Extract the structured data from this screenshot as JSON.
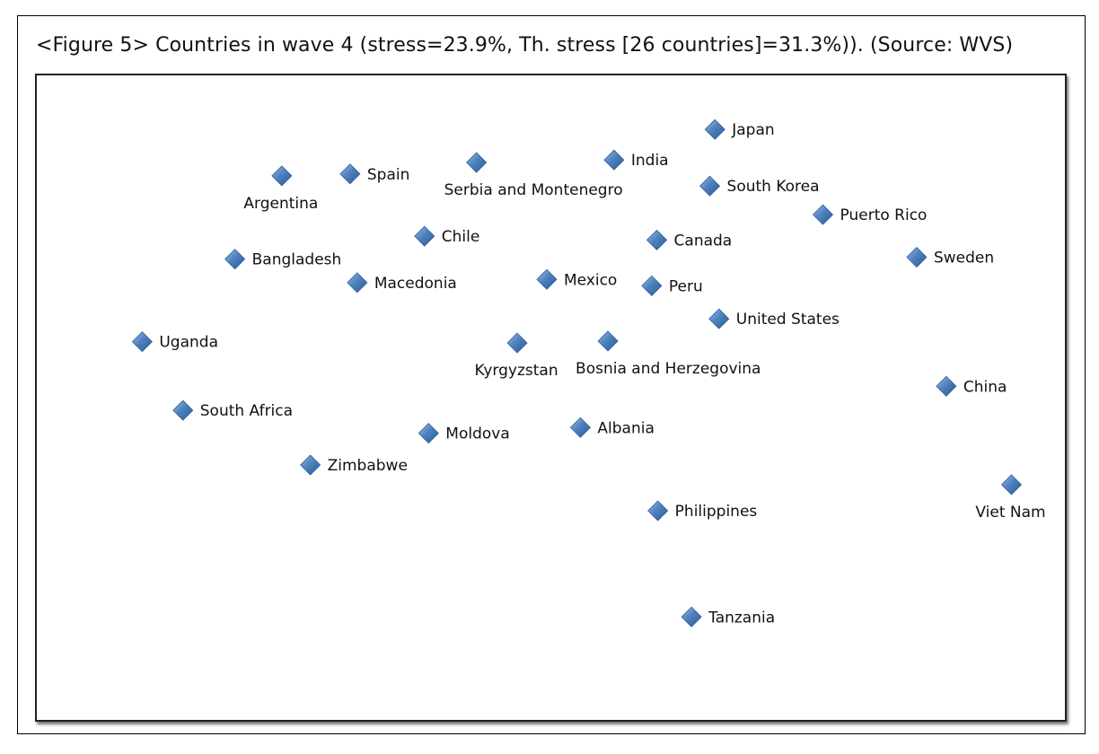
{
  "caption": "<Figure 5> Countries in wave 4 (stress=23.9%, Th. stress [26 countries]=31.3%)). (Source: WVS)",
  "marker_color": "#4f81bd",
  "chart_data": {
    "type": "scatter",
    "title": "",
    "xlabel": "",
    "ylabel": "",
    "grid": false,
    "legend": "none",
    "xlim": [
      0,
      100
    ],
    "ylim": [
      0,
      100
    ],
    "points": [
      {
        "label": "Japan",
        "x": 66.1,
        "y": 92.2,
        "label_pos": "right"
      },
      {
        "label": "Spain",
        "x": 30.3,
        "y": 85.2,
        "label_pos": "right"
      },
      {
        "label": "Argentina",
        "x": 23.6,
        "y": 84.9,
        "label_pos": "below"
      },
      {
        "label": "Serbia and Montenegro",
        "x": 42.7,
        "y": 87.0,
        "label_pos": "below-right"
      },
      {
        "label": "India",
        "x": 56.2,
        "y": 87.4,
        "label_pos": "right"
      },
      {
        "label": "South Korea",
        "x": 65.6,
        "y": 83.3,
        "label_pos": "right"
      },
      {
        "label": "Puerto Rico",
        "x": 76.7,
        "y": 78.8,
        "label_pos": "right"
      },
      {
        "label": "Chile",
        "x": 37.6,
        "y": 75.4,
        "label_pos": "right"
      },
      {
        "label": "Canada",
        "x": 60.4,
        "y": 74.8,
        "label_pos": "right"
      },
      {
        "label": "Bangladesh",
        "x": 19.0,
        "y": 71.8,
        "label_pos": "right"
      },
      {
        "label": "Sweden",
        "x": 85.9,
        "y": 72.1,
        "label_pos": "right"
      },
      {
        "label": "Macedonia",
        "x": 31.0,
        "y": 68.1,
        "label_pos": "right"
      },
      {
        "label": "Mexico",
        "x": 49.6,
        "y": 68.6,
        "label_pos": "right"
      },
      {
        "label": "Peru",
        "x": 59.9,
        "y": 67.6,
        "label_pos": "right"
      },
      {
        "label": "United States",
        "x": 66.5,
        "y": 62.4,
        "label_pos": "right"
      },
      {
        "label": "Uganda",
        "x": 9.9,
        "y": 58.8,
        "label_pos": "right"
      },
      {
        "label": "Kyrgyzstan",
        "x": 46.7,
        "y": 58.6,
        "label_pos": "below"
      },
      {
        "label": "Bosnia and Herzegovina",
        "x": 55.6,
        "y": 58.9,
        "label_pos": "below-right"
      },
      {
        "label": "China",
        "x": 88.8,
        "y": 51.8,
        "label_pos": "right"
      },
      {
        "label": "South Africa",
        "x": 13.9,
        "y": 48.0,
        "label_pos": "right"
      },
      {
        "label": "Moldova",
        "x": 38.0,
        "y": 44.4,
        "label_pos": "right"
      },
      {
        "label": "Albania",
        "x": 52.9,
        "y": 45.3,
        "label_pos": "right"
      },
      {
        "label": "Zimbabwe",
        "x": 26.4,
        "y": 39.4,
        "label_pos": "right"
      },
      {
        "label": "Viet Nam",
        "x": 95.2,
        "y": 36.3,
        "label_pos": "below"
      },
      {
        "label": "Philippines",
        "x": 60.5,
        "y": 32.2,
        "label_pos": "right"
      },
      {
        "label": "Tanzania",
        "x": 63.8,
        "y": 15.5,
        "label_pos": "right"
      }
    ]
  }
}
